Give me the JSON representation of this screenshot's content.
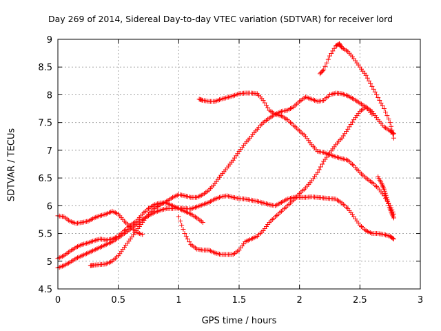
{
  "chart_data": {
    "type": "scatter",
    "title": "Day 269 of 2014, Sidereal Day-to-day VTEC variation (SDTVAR) for receiver lord",
    "xlabel": "GPS time / hours",
    "ylabel": "SDTVAR / TECUs",
    "xlim": [
      0,
      3
    ],
    "ylim": [
      4.5,
      9
    ],
    "xticks": [
      "0",
      "0.5",
      "1",
      "1.5",
      "2",
      "2.5",
      "3"
    ],
    "yticks": [
      "4.5",
      "5",
      "5.5",
      "6",
      "6.5",
      "7",
      "7.5",
      "8",
      "8.5",
      "9"
    ],
    "grid": true,
    "legend": "none",
    "marker": "plus",
    "color": "#ff0000",
    "series": [
      {
        "x": [
          0.0,
          0.05,
          0.1,
          0.15,
          0.2,
          0.25,
          0.3,
          0.35,
          0.4,
          0.45,
          0.5,
          0.55,
          0.6,
          0.65,
          0.7
        ],
        "y": [
          5.82,
          5.8,
          5.72,
          5.68,
          5.7,
          5.72,
          5.78,
          5.82,
          5.85,
          5.9,
          5.85,
          5.72,
          5.62,
          5.52,
          5.48
        ]
      },
      {
        "x": [
          0.0,
          0.05,
          0.1,
          0.15,
          0.2,
          0.25,
          0.3,
          0.35,
          0.4,
          0.45,
          0.5,
          0.55,
          0.6,
          0.65,
          0.7,
          0.75,
          0.8,
          0.85,
          0.9,
          0.95,
          1.0,
          1.05,
          1.1,
          1.15,
          1.2
        ],
        "y": [
          5.05,
          5.1,
          5.18,
          5.25,
          5.3,
          5.33,
          5.37,
          5.4,
          5.38,
          5.4,
          5.45,
          5.55,
          5.65,
          5.72,
          5.85,
          5.95,
          6.02,
          6.05,
          6.05,
          6.0,
          5.95,
          5.9,
          5.85,
          5.78,
          5.7
        ]
      },
      {
        "x": [
          0.0,
          0.05,
          0.1,
          0.15,
          0.2,
          0.25,
          0.3,
          0.35,
          0.4,
          0.45,
          0.5,
          0.55,
          0.6,
          0.65,
          0.7,
          0.75,
          0.8,
          0.85,
          0.9,
          0.95,
          1.0,
          1.05,
          1.1,
          1.15,
          1.2,
          1.25,
          1.3,
          1.35,
          1.4,
          1.45,
          1.5,
          1.55,
          1.6,
          1.65,
          1.7,
          1.75,
          1.8,
          1.85,
          1.9,
          1.95,
          2.0,
          2.05,
          2.1,
          2.15,
          2.2,
          2.25,
          2.3,
          2.35,
          2.4,
          2.45,
          2.5,
          2.55,
          2.6,
          2.65,
          2.7,
          2.75,
          2.78
        ],
        "y": [
          4.88,
          4.92,
          4.98,
          5.05,
          5.1,
          5.15,
          5.2,
          5.25,
          5.3,
          5.35,
          5.42,
          5.5,
          5.58,
          5.66,
          5.75,
          5.82,
          5.88,
          5.92,
          5.95,
          5.95,
          5.96,
          5.95,
          5.94,
          5.98,
          6.02,
          6.06,
          6.12,
          6.16,
          6.18,
          6.15,
          6.13,
          6.12,
          6.1,
          6.08,
          6.05,
          6.02,
          6.0,
          6.06,
          6.12,
          6.15,
          6.15,
          6.15,
          6.16,
          6.15,
          6.14,
          6.13,
          6.12,
          6.05,
          5.95,
          5.8,
          5.65,
          5.55,
          5.5,
          5.5,
          5.48,
          5.45,
          5.4
        ]
      },
      {
        "x": [
          0.27,
          0.3,
          0.35,
          0.4,
          0.45,
          0.5,
          0.55,
          0.6,
          0.65,
          0.7,
          0.75,
          0.8,
          0.85,
          0.9,
          0.95,
          1.0,
          1.05,
          1.1,
          1.15,
          1.2,
          1.25,
          1.3,
          1.35,
          1.4,
          1.45,
          1.5,
          1.55,
          1.6,
          1.65,
          1.7,
          1.75,
          1.8,
          1.85,
          1.9,
          1.95,
          2.0,
          2.05,
          2.1,
          2.15,
          2.2,
          2.25,
          2.3,
          2.35,
          2.4,
          2.45,
          2.5,
          2.55,
          2.6
        ],
        "y": [
          4.92,
          4.93,
          4.94,
          4.95,
          5.0,
          5.1,
          5.25,
          5.4,
          5.55,
          5.7,
          5.85,
          5.95,
          6.02,
          6.08,
          6.15,
          6.2,
          6.18,
          6.15,
          6.15,
          6.2,
          6.28,
          6.4,
          6.55,
          6.68,
          6.82,
          6.98,
          7.12,
          7.25,
          7.38,
          7.5,
          7.58,
          7.65,
          7.7,
          7.72,
          7.78,
          7.88,
          7.96,
          7.92,
          7.88,
          7.9,
          8.0,
          8.03,
          8.02,
          7.98,
          7.92,
          7.85,
          7.78,
          7.65
        ]
      },
      {
        "x": [
          1.17,
          1.2,
          1.25,
          1.3,
          1.35,
          1.4,
          1.45,
          1.5,
          1.55,
          1.6,
          1.65,
          1.7,
          1.75,
          1.8,
          1.85,
          1.9,
          1.95,
          2.0,
          2.05,
          2.1,
          2.15,
          2.2,
          2.25,
          2.3,
          2.35,
          2.4,
          2.45,
          2.5,
          2.55,
          2.6,
          2.65,
          2.7,
          2.75,
          2.78
        ],
        "y": [
          7.92,
          7.9,
          7.88,
          7.88,
          7.92,
          7.95,
          7.98,
          8.02,
          8.03,
          8.03,
          8.02,
          7.9,
          7.72,
          7.65,
          7.62,
          7.55,
          7.45,
          7.35,
          7.25,
          7.1,
          6.98,
          6.96,
          6.92,
          6.88,
          6.85,
          6.82,
          6.72,
          6.6,
          6.5,
          6.42,
          6.32,
          6.18,
          6.0,
          5.85
        ]
      },
      {
        "x": [
          1.0,
          1.05,
          1.1,
          1.15,
          1.2,
          1.25,
          1.3,
          1.35,
          1.4,
          1.45,
          1.5,
          1.55,
          1.6,
          1.65,
          1.7,
          1.75,
          1.8,
          1.85,
          1.9,
          1.95,
          2.0,
          2.05,
          2.1,
          2.15,
          2.2,
          2.25,
          2.3,
          2.35,
          2.4,
          2.45,
          2.5,
          2.55,
          2.6,
          2.65,
          2.7,
          2.75,
          2.78
        ],
        "y": [
          5.8,
          5.5,
          5.3,
          5.22,
          5.2,
          5.2,
          5.15,
          5.12,
          5.12,
          5.12,
          5.2,
          5.35,
          5.4,
          5.45,
          5.55,
          5.7,
          5.8,
          5.9,
          6.0,
          6.1,
          6.22,
          6.32,
          6.45,
          6.6,
          6.8,
          6.95,
          7.1,
          7.22,
          7.38,
          7.55,
          7.7,
          7.78,
          7.7,
          7.55,
          7.42,
          7.35,
          7.3
        ]
      },
      {
        "x": [
          2.17,
          2.2,
          2.25,
          2.3,
          2.33,
          2.35,
          2.4,
          2.45,
          2.5,
          2.55,
          2.6,
          2.65,
          2.7,
          2.75,
          2.78
        ],
        "y": [
          8.38,
          8.45,
          8.7,
          8.88,
          8.92,
          8.85,
          8.78,
          8.65,
          8.5,
          8.35,
          8.15,
          7.95,
          7.75,
          7.5,
          7.22
        ]
      },
      {
        "x": [
          2.65,
          2.68,
          2.7,
          2.72,
          2.74,
          2.76,
          2.78
        ],
        "y": [
          6.52,
          6.4,
          6.3,
          6.15,
          6.0,
          5.88,
          5.78
        ]
      }
    ]
  }
}
